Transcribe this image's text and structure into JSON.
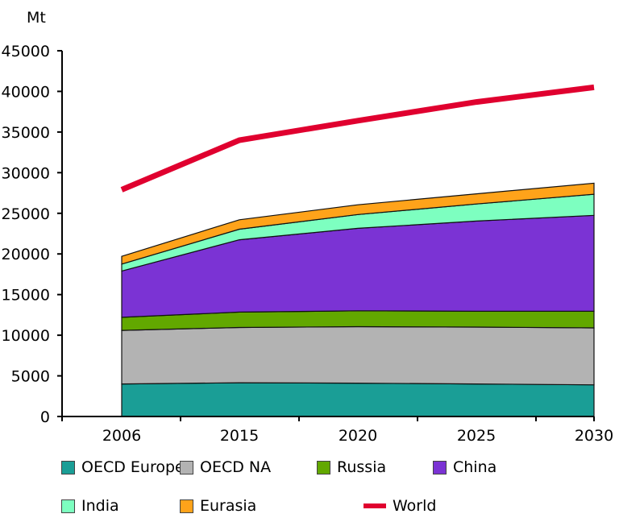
{
  "chart_data": {
    "type": "area",
    "title": "",
    "ylabel": "Mt",
    "xlabel": "",
    "ylim": [
      0,
      45000
    ],
    "yticks": [
      0,
      5000,
      10000,
      15000,
      20000,
      25000,
      30000,
      35000,
      40000,
      45000
    ],
    "categories": [
      "2006",
      "2015",
      "2020",
      "2025",
      "2030"
    ],
    "stacked": true,
    "series": [
      {
        "name": "OECD Europe",
        "color": "#1a9e96",
        "values": [
          4000,
          4150,
          4100,
          4000,
          3900
        ]
      },
      {
        "name": "OECD NA",
        "color": "#b3b3b3",
        "values": [
          6600,
          6800,
          6950,
          7000,
          7000
        ]
      },
      {
        "name": "Russia",
        "color": "#62a800",
        "values": [
          1600,
          1900,
          1950,
          1950,
          2050
        ]
      },
      {
        "name": "China",
        "color": "#7b33d4",
        "values": [
          5700,
          8900,
          10150,
          11100,
          11800
        ]
      },
      {
        "name": "India",
        "color": "#7dffc0",
        "values": [
          850,
          1300,
          1700,
          2100,
          2600
        ]
      },
      {
        "name": "Eurasia",
        "color": "#ffa31a",
        "values": [
          950,
          1150,
          1200,
          1250,
          1350
        ]
      }
    ],
    "line_series": [
      {
        "name": "World",
        "color": "#e0002f",
        "values": [
          27900,
          34000,
          36400,
          38700,
          40500
        ]
      }
    ],
    "legend": {
      "placement": "bottom",
      "items": [
        {
          "label": "OECD Europe",
          "color": "#1a9e96",
          "kind": "box"
        },
        {
          "label": "OECD NA",
          "color": "#b3b3b3",
          "kind": "box"
        },
        {
          "label": "Russia",
          "color": "#62a800",
          "kind": "box"
        },
        {
          "label": "China",
          "color": "#7b33d4",
          "kind": "box"
        },
        {
          "label": "India",
          "color": "#7dffc0",
          "kind": "box"
        },
        {
          "label": "Eurasia",
          "color": "#ffa31a",
          "kind": "box"
        },
        {
          "label": "World",
          "color": "#e0002f",
          "kind": "line"
        }
      ]
    },
    "grid": false
  }
}
